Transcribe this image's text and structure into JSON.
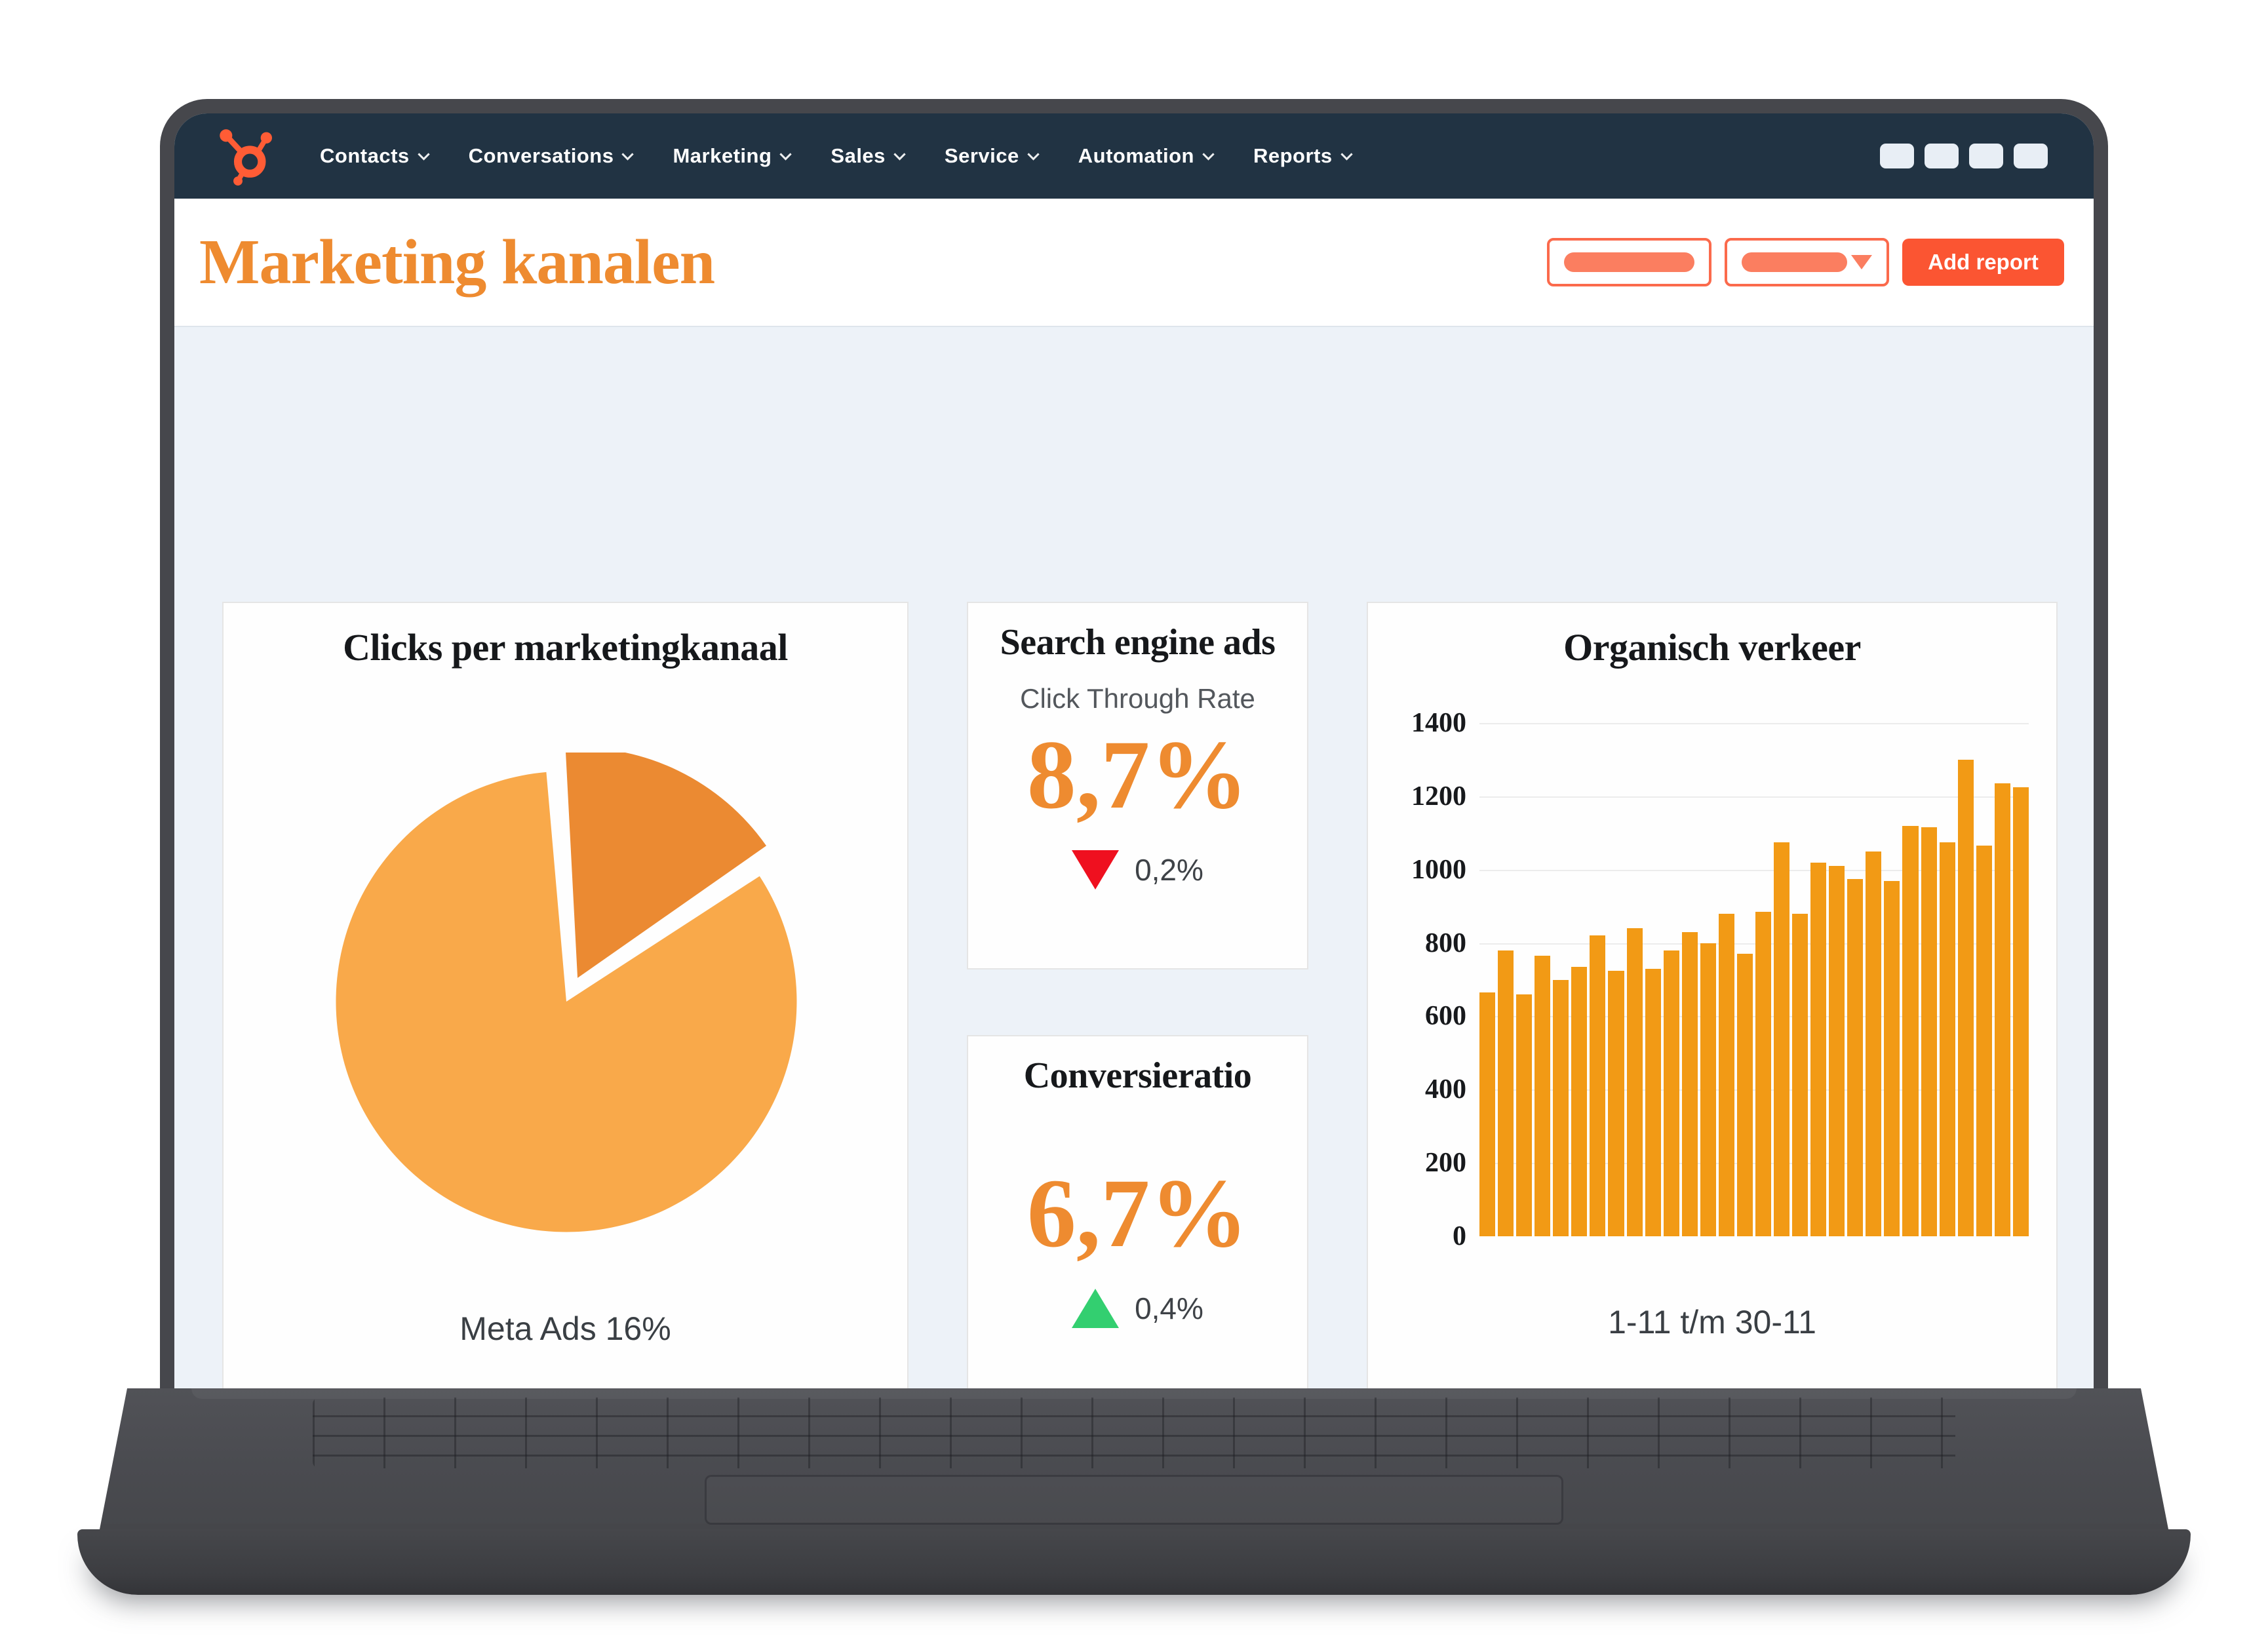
{
  "colors": {
    "accent_orange": "#EE8B30",
    "pie_main": "#F9A94A",
    "pie_slice": "#EB8A32",
    "bar": "#F29A15",
    "coral": "#FB5532",
    "coral_light": "#FB7E60",
    "coral_border": "#FB6A4C",
    "nav_bg": "#213343",
    "logo": "#FF5C35",
    "red": "#EF101F",
    "green": "#33CF70",
    "dashboard_bg": "#EDF2F8"
  },
  "nav": {
    "logo_icon": "hubspot-sprocket",
    "items": [
      "Contacts",
      "Conversations",
      "Marketing",
      "Sales",
      "Service",
      "Automation",
      "Reports"
    ],
    "tile_count": 4
  },
  "header": {
    "title": "Marketing kanalen",
    "add_report_label": "Add report"
  },
  "cards": {
    "pie": {
      "title": "Clicks per marketingkanaal",
      "label": "Meta Ads 16%"
    },
    "ctr": {
      "title": "Search engine ads",
      "subtitle": "Click Through Rate",
      "value": "8,7%",
      "delta": "0,2%",
      "delta_direction": "down"
    },
    "conversion": {
      "title": "Conversieratio",
      "value": "6,7%",
      "delta": "0,4%",
      "delta_direction": "up"
    },
    "organic": {
      "title": "Organisch verkeer",
      "xlabel": "1-11 t/m 30-11"
    }
  },
  "chart_data": [
    {
      "type": "pie",
      "title": "Clicks per marketingkanaal",
      "slices": [
        {
          "label": "",
          "value": 84,
          "color": "#F9A94A"
        },
        {
          "label": "Meta Ads",
          "value": 16,
          "color": "#EB8A32",
          "exploded": true
        }
      ],
      "annotation": "Meta Ads 16%",
      "legend": "none"
    },
    {
      "type": "bar",
      "title": "Organisch verkeer",
      "xlabel": "1-11 t/m 30-11",
      "ylim": [
        0,
        1400
      ],
      "yticks": [
        0,
        200,
        400,
        600,
        800,
        1000,
        1200,
        1400
      ],
      "grid": true,
      "bar_color": "#F29A15",
      "values": [
        665,
        780,
        660,
        765,
        700,
        735,
        820,
        725,
        840,
        730,
        780,
        830,
        800,
        880,
        770,
        885,
        1075,
        880,
        1020,
        1010,
        975,
        1050,
        970,
        1120,
        1115,
        1075,
        1300,
        1065,
        1235,
        1225
      ]
    }
  ]
}
